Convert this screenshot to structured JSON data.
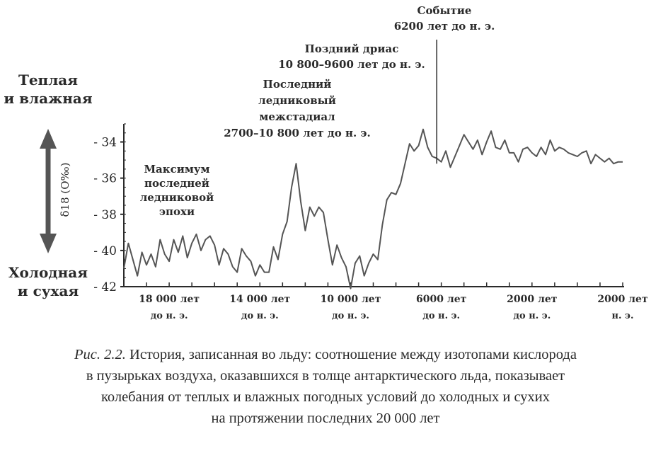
{
  "chart_data": {
    "type": "line",
    "ylabel": "δ18 (O‰)",
    "y_ticks": [
      "- 34",
      "- 36",
      "- 38",
      "- 40",
      "- 42"
    ],
    "y_tick_values": [
      -34,
      -36,
      -38,
      -40,
      -42
    ],
    "ylim": [
      -42,
      -33
    ],
    "xlim": [
      20000,
      -2000
    ],
    "x_ticks": [
      {
        "value": 18000,
        "line1": "18 000 лет",
        "line2": "до н. э."
      },
      {
        "value": 14000,
        "line1": "14 000 лет",
        "line2": "до н. э."
      },
      {
        "value": 10000,
        "line1": "10 000 лет",
        "line2": "до н. э."
      },
      {
        "value": 6000,
        "line1": "6000 лет",
        "line2": "до н. э."
      },
      {
        "value": 2000,
        "line1": "2000 лет",
        "line2": "до н. э."
      },
      {
        "value": -2000,
        "line1": "2000 лет",
        "line2": "н. э."
      }
    ],
    "y_end_labels": {
      "top": [
        "Теплая",
        "и влажная"
      ],
      "bottom": [
        "Холодная",
        "и сухая"
      ]
    },
    "annotations": [
      {
        "id": "lgm",
        "lines": [
          "Максимум",
          "последней",
          "ледниковой",
          "эпохи"
        ]
      },
      {
        "id": "interstadial",
        "lines": [
          "Последний",
          "ледниковый",
          "межстадиал",
          "2700–10 800 лет до н. э."
        ]
      },
      {
        "id": "dryas",
        "lines": [
          "Поздний дриас",
          "10 800–9600 лет до н. э."
        ]
      },
      {
        "id": "event",
        "lines": [
          "Событие",
          "6200 лет до н. э."
        ],
        "x": 6200
      }
    ],
    "series": [
      {
        "x": [
          20000,
          19800,
          19600,
          19400,
          19200,
          19000,
          18800,
          18600,
          18400,
          18200,
          18000,
          17800,
          17600,
          17400,
          17200,
          17000,
          16800,
          16600,
          16400,
          16200,
          16000,
          15800,
          15600,
          15400,
          15200,
          15000,
          14800,
          14600,
          14400,
          14200,
          14000,
          13800,
          13600,
          13400,
          13200,
          13000,
          12800,
          12600,
          12400,
          12200,
          12000,
          11800,
          11600,
          11400,
          11200,
          11000,
          10800,
          10600,
          10400,
          10200,
          10000,
          9800,
          9600,
          9400,
          9200,
          9000,
          8800,
          8600,
          8400,
          8200,
          8000,
          7800,
          7600,
          7400,
          7200,
          7000,
          6800,
          6600,
          6400,
          6200,
          6000,
          5800,
          5600,
          5400,
          5200,
          5000,
          4800,
          4600,
          4400,
          4200,
          4000,
          3800,
          3600,
          3400,
          3200,
          3000,
          2800,
          2600,
          2400,
          2200,
          2000,
          1800,
          1600,
          1400,
          1200,
          1000,
          800,
          600,
          400,
          200,
          0,
          -200,
          -400,
          -600,
          -800,
          -1000,
          -1200,
          -1400,
          -1600,
          -1800,
          -2000
        ],
        "y": [
          -41,
          -39.6,
          -40.5,
          -41.4,
          -40.1,
          -40.8,
          -40.2,
          -40.9,
          -39.4,
          -40.2,
          -40.6,
          -39.4,
          -40.1,
          -39.2,
          -40.4,
          -39.6,
          -39.1,
          -40,
          -39.4,
          -39.2,
          -39.7,
          -40.8,
          -39.9,
          -40.2,
          -40.9,
          -41.2,
          -39.9,
          -40.3,
          -40.6,
          -41.4,
          -40.8,
          -41.2,
          -41.2,
          -39.8,
          -40.5,
          -39.1,
          -38.4,
          -36.5,
          -35.2,
          -37.3,
          -38.9,
          -37.6,
          -38.1,
          -37.6,
          -37.9,
          -39.4,
          -40.8,
          -39.7,
          -40.4,
          -40.9,
          -42.1,
          -40.7,
          -40.3,
          -41.4,
          -40.7,
          -40.2,
          -40.5,
          -38.6,
          -37.2,
          -36.8,
          -36.9,
          -36.3,
          -35.2,
          -34.1,
          -34.5,
          -34.2,
          -33.3,
          -34.3,
          -34.8,
          -34.9,
          -35.1,
          -34.5,
          -35.4,
          -34.8,
          -34.2,
          -33.6,
          -34,
          -34.4,
          -33.9,
          -34.7,
          -34,
          -33.4,
          -34.3,
          -34.4,
          -33.9,
          -34.6,
          -34.6,
          -35.1,
          -34.4,
          -34.3,
          -34.6,
          -34.8,
          -34.3,
          -34.7,
          -33.9,
          -34.5,
          -34.3,
          -34.4,
          -34.6,
          -34.7,
          -34.8,
          -34.6,
          -34.5,
          -35.2,
          -34.7,
          -34.9,
          -35.1,
          -34.9,
          -35.2,
          -35.1,
          -35.1
        ]
      }
    ]
  },
  "caption": {
    "lead": "Рис. 2.2.",
    "lines": [
      "История, записанная во льду: соотношение между изотопами кислорода",
      "в пузырьках воздуха, оказавшихся в толще антарктического льда, показывает",
      "колебания от теплых и влажных погодных условий до холодных и сухих",
      "на протяжении последних 20 000 лет"
    ]
  },
  "colors": {
    "line": "#555555",
    "axis": "#2a2a2a",
    "arrow": "#555555",
    "text": "#2a2a2a"
  }
}
